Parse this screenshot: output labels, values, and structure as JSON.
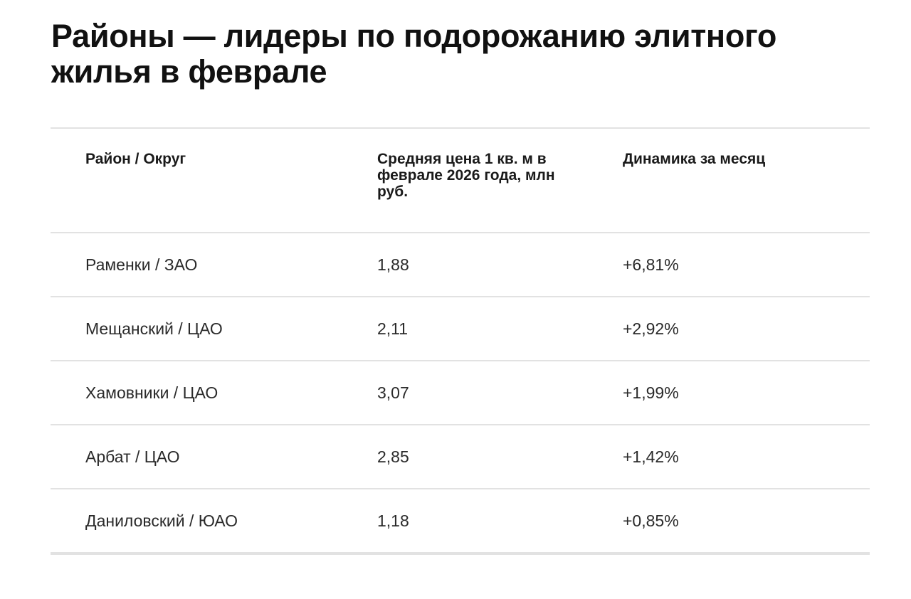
{
  "title": "Районы — лидеры по подорожанию элитного жилья в феврале",
  "table": {
    "headers": [
      "Район / Округ",
      "Средняя цена 1 кв. м в феврале 2026 года, млн руб.",
      "Динамика за месяц"
    ],
    "rows": [
      [
        "Раменки / ЗАО",
        "1,88",
        "+6,81%"
      ],
      [
        "Мещанский / ЦАО",
        "2,11",
        "+2,92%"
      ],
      [
        "Хамовники / ЦАО",
        "3,07",
        "+1,99%"
      ],
      [
        "Арбат / ЦАО",
        "2,85",
        "+1,42%"
      ],
      [
        "Даниловский / ЮАО",
        "1,18",
        "+0,85%"
      ]
    ]
  }
}
